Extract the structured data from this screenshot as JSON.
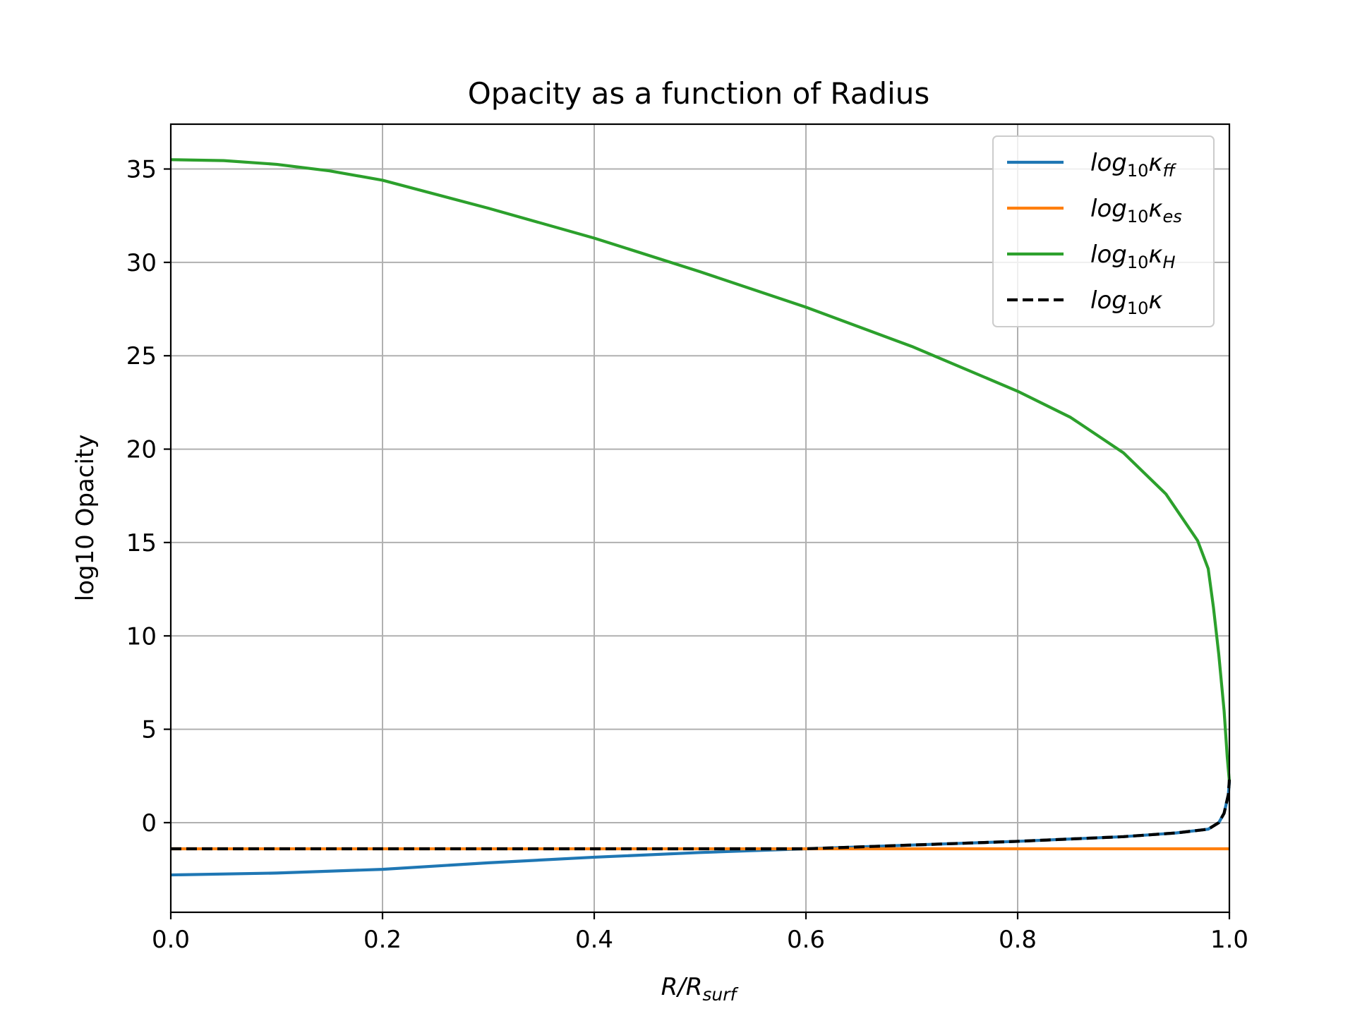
{
  "chart_data": {
    "type": "line",
    "title": "Opacity as a function of Radius",
    "xlabel": "R/R",
    "xlabel_sub": "surf",
    "ylabel": "log10 Opacity",
    "xlim": [
      0.0,
      1.0
    ],
    "ylim": [
      -4.8,
      37.4
    ],
    "xticks": [
      0.0,
      0.2,
      0.4,
      0.6,
      0.8,
      1.0
    ],
    "xtick_labels": [
      "0.0",
      "0.2",
      "0.4",
      "0.6",
      "0.8",
      "1.0"
    ],
    "yticks": [
      0,
      5,
      10,
      15,
      20,
      25,
      30,
      35
    ],
    "ytick_labels": [
      "0",
      "5",
      "10",
      "15",
      "20",
      "25",
      "30",
      "35"
    ],
    "grid": true,
    "legend_position": "top-right",
    "series": [
      {
        "key": "ff",
        "legend_base": "log",
        "legend_sub": "10",
        "legend_kappa": "κ",
        "legend_kappa_sub": "ff",
        "color": "#1f77b4",
        "dash": "solid",
        "x": [
          0.0,
          0.1,
          0.2,
          0.3,
          0.4,
          0.5,
          0.6,
          0.7,
          0.8,
          0.9,
          0.95,
          0.98,
          0.99,
          0.995,
          0.999,
          1.0
        ],
        "y": [
          -2.8,
          -2.7,
          -2.5,
          -2.15,
          -1.85,
          -1.6,
          -1.4,
          -1.2,
          -1.0,
          -0.75,
          -0.55,
          -0.35,
          0.0,
          0.5,
          1.5,
          2.2
        ]
      },
      {
        "key": "es",
        "legend_base": "log",
        "legend_sub": "10",
        "legend_kappa": "κ",
        "legend_kappa_sub": "es",
        "color": "#ff7f0e",
        "dash": "solid",
        "x": [
          0.0,
          1.0
        ],
        "y": [
          -1.4,
          -1.4
        ]
      },
      {
        "key": "H",
        "legend_base": "log",
        "legend_sub": "10",
        "legend_kappa": "κ",
        "legend_kappa_sub": "H",
        "color": "#2ca02c",
        "dash": "solid",
        "x": [
          0.0,
          0.05,
          0.1,
          0.15,
          0.2,
          0.3,
          0.4,
          0.5,
          0.6,
          0.7,
          0.8,
          0.85,
          0.9,
          0.94,
          0.97,
          0.98,
          0.985,
          0.99,
          0.995,
          0.998,
          1.0
        ],
        "y": [
          35.5,
          35.45,
          35.25,
          34.9,
          34.4,
          32.9,
          31.3,
          29.5,
          27.6,
          25.5,
          23.1,
          21.7,
          19.8,
          17.6,
          15.1,
          13.6,
          11.5,
          9.0,
          6.0,
          3.5,
          2.2
        ]
      },
      {
        "key": "total",
        "legend_base": "log",
        "legend_sub": "10",
        "legend_kappa": "κ",
        "legend_kappa_sub": "",
        "color": "#000000",
        "dash": "dashed",
        "x": [
          0.0,
          0.1,
          0.2,
          0.3,
          0.4,
          0.5,
          0.58,
          0.6,
          0.7,
          0.8,
          0.9,
          0.95,
          0.98,
          0.99,
          0.995,
          0.999,
          1.0
        ],
        "y": [
          -1.4,
          -1.4,
          -1.4,
          -1.4,
          -1.4,
          -1.4,
          -1.4,
          -1.4,
          -1.2,
          -1.0,
          -0.75,
          -0.55,
          -0.35,
          0.0,
          0.5,
          1.5,
          2.3
        ]
      }
    ]
  }
}
